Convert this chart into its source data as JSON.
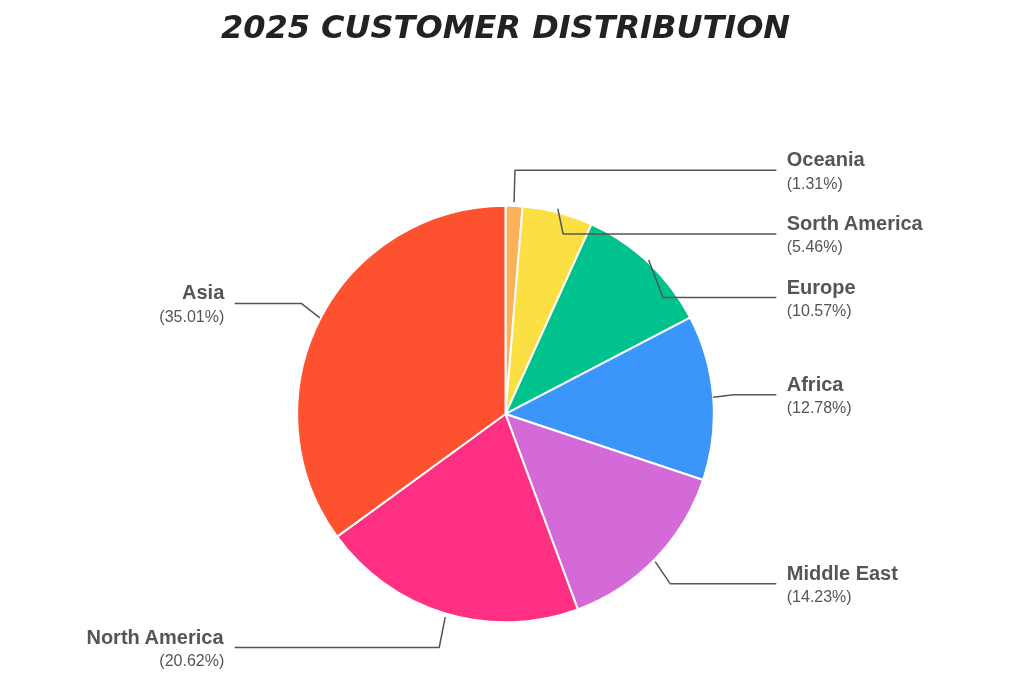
{
  "chart_data": {
    "type": "pie",
    "title": "2025 CUSTOMER DISTRIBUTION",
    "categories": [
      "Oceania",
      "Sorth America",
      "Europe",
      "Africa",
      "Middle East",
      "North America",
      "Asia"
    ],
    "values": [
      1.31,
      5.46,
      10.57,
      12.78,
      14.23,
      20.62,
      35.01
    ],
    "colors": [
      "#fdb05a",
      "#fce043",
      "#00c28c",
      "#3a96fa",
      "#d46ad8",
      "#ff2f83",
      "#fe512f"
    ],
    "value_labels": [
      "(1.31%)",
      "(5.46%)",
      "(10.57%)",
      "(12.78%)",
      "(14.23%)",
      "(20.62%)",
      "(35.01%)"
    ]
  }
}
